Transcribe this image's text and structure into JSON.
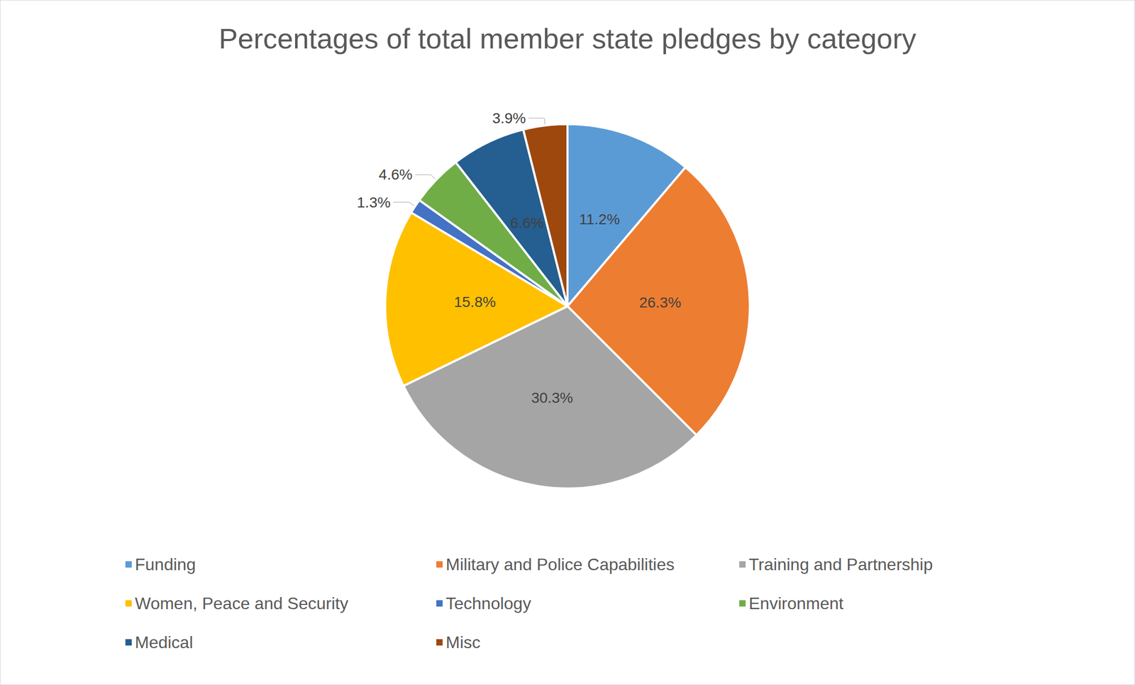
{
  "chart_data": {
    "type": "pie",
    "title": "Percentages of total member state pledges by category",
    "categories": [
      "Funding",
      "Military and Police Capabilities",
      "Training and Partnership",
      "Women, Peace and Security",
      "Technology",
      "Environment",
      "Medical",
      "Misc"
    ],
    "values": [
      11.2,
      26.3,
      30.3,
      15.8,
      1.3,
      4.6,
      6.6,
      3.9
    ],
    "value_labels": [
      "11.2%",
      "26.3%",
      "30.3%",
      "15.8%",
      "1.3%",
      "4.6%",
      "6.6%",
      "3.9%"
    ],
    "colors": [
      "#5b9bd5",
      "#ed7d31",
      "#a5a5a5",
      "#ffc000",
      "#4472c4",
      "#70ad47",
      "#255e91",
      "#9e480e"
    ],
    "data_labels": true
  }
}
